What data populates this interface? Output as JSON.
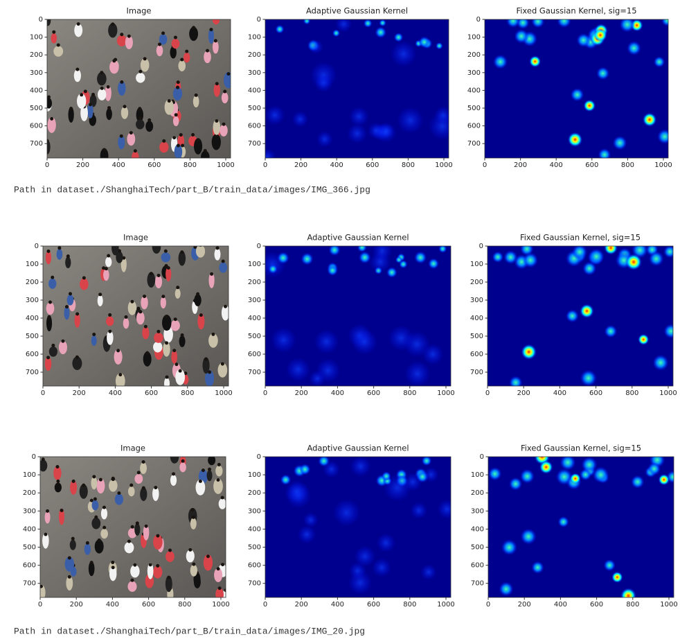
{
  "rows": [
    {
      "panels": [
        {
          "title": "Image"
        },
        {
          "title": "Adaptive Gaussian Kernel"
        },
        {
          "title": "Fixed Gaussian Kernel, sig=15"
        }
      ],
      "path": "Path in dataset./ShanghaiTech/part_B/train_data/images/IMG_366.jpg"
    },
    {
      "panels": [
        {
          "title": "Image"
        },
        {
          "title": "Adaptive Gaussian Kernel"
        },
        {
          "title": "Fixed Gaussian Kernel, sig=15"
        }
      ]
    },
    {
      "panels": [
        {
          "title": "Image"
        },
        {
          "title": "Adaptive Gaussian Kernel"
        },
        {
          "title": "Fixed Gaussian Kernel, sig=15"
        }
      ],
      "path": "Path in dataset./ShanghaiTech/part_B/train_data/images/IMG_20.jpg"
    }
  ],
  "xticks": [
    0,
    200,
    400,
    600,
    800,
    1000
  ],
  "yticks": [
    0,
    100,
    200,
    300,
    400,
    500,
    600,
    700
  ]
}
